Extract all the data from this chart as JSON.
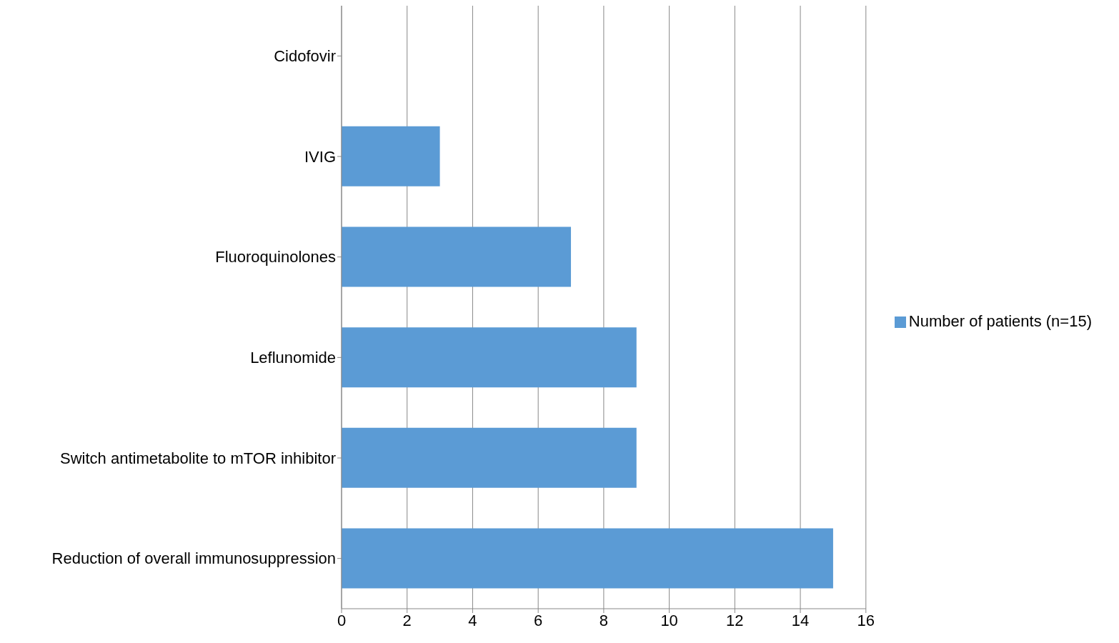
{
  "chart_data": {
    "type": "bar",
    "orientation": "horizontal",
    "categories": [
      "Cidofovir",
      "IVIG",
      "Fluoroquinolones",
      "Leflunomide",
      "Switch antimetabolite to mTOR inhibitor",
      "Reduction of overall immunosuppression"
    ],
    "series": [
      {
        "name": "Number of patients (n=15)",
        "color": "#5b9bd5",
        "values": [
          0,
          3,
          7,
          9,
          9,
          15
        ]
      }
    ],
    "xlim": [
      0,
      16
    ],
    "xticks": [
      0,
      2,
      4,
      6,
      8,
      10,
      12,
      14,
      16
    ],
    "grid": "x",
    "legend": "right"
  }
}
